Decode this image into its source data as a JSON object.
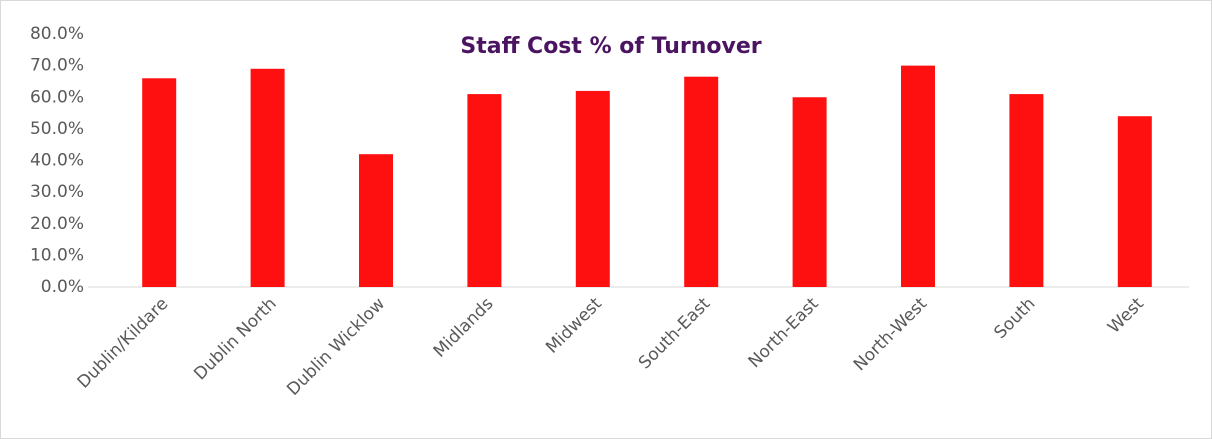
{
  "chart_data": {
    "type": "bar",
    "title": "Staff Cost % of Turnover",
    "categories": [
      "Dublin/Kildare",
      "Dublin North",
      "Dublin Wicklow",
      "Midlands",
      "Midwest",
      "South-East",
      "North-East",
      "North-West",
      "South",
      "West"
    ],
    "values": [
      66,
      69,
      42,
      61,
      62,
      66.5,
      60,
      70,
      61,
      54
    ],
    "color": "#ff1010",
    "ylim": [
      0,
      80
    ],
    "yticks": [
      {
        "value": 0,
        "label": "0.0%"
      },
      {
        "value": 10,
        "label": "10.0%"
      },
      {
        "value": 20,
        "label": "20.0%"
      },
      {
        "value": 30,
        "label": "30.0%"
      },
      {
        "value": 40,
        "label": "40.0%"
      },
      {
        "value": 50,
        "label": "50.0%"
      },
      {
        "value": 60,
        "label": "60.0%"
      },
      {
        "value": 70,
        "label": "70.0%"
      },
      {
        "value": 80,
        "label": "80.0%"
      }
    ],
    "grid": false
  }
}
